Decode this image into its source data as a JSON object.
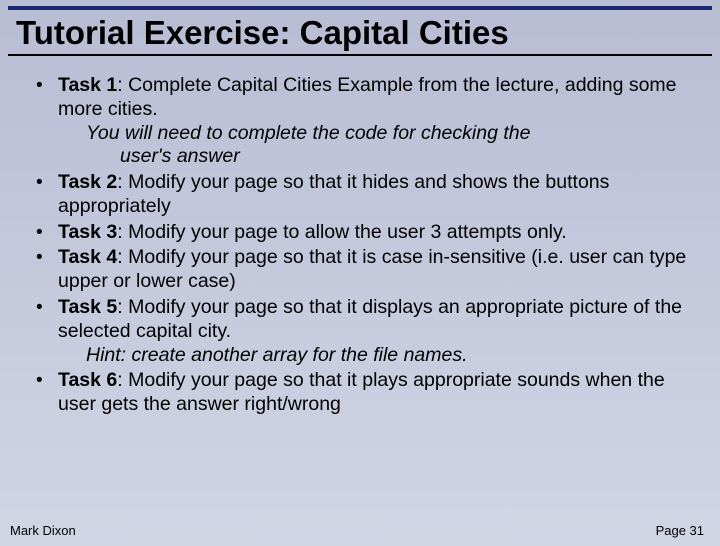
{
  "title": "Tutorial Exercise: Capital Cities",
  "tasks": [
    {
      "label": "Task 1",
      "text": ": Complete Capital Cities Example from the lecture, adding some more cities.",
      "sub1": "You will need to complete the code for checking the",
      "sub2": "user's answer"
    },
    {
      "label": "Task 2",
      "text": ": Modify your page so that it hides and shows the buttons appropriately"
    },
    {
      "label": "Task 3",
      "text": ": Modify your page to allow the user 3 attempts only."
    },
    {
      "label": "Task 4",
      "text": ": Modify your page so that it is case in-sensitive (i.e. user can type upper or lower case)"
    },
    {
      "label": "Task 5",
      "text": ": Modify your page so that it displays an appropriate picture of the selected capital city.",
      "sub1": "Hint: create another array for the file names."
    },
    {
      "label": "Task 6",
      "text": ": Modify your page so that it plays appropriate sounds when the user gets the answer right/wrong"
    }
  ],
  "footer": {
    "author": "Mark Dixon",
    "page": "Page 31"
  }
}
